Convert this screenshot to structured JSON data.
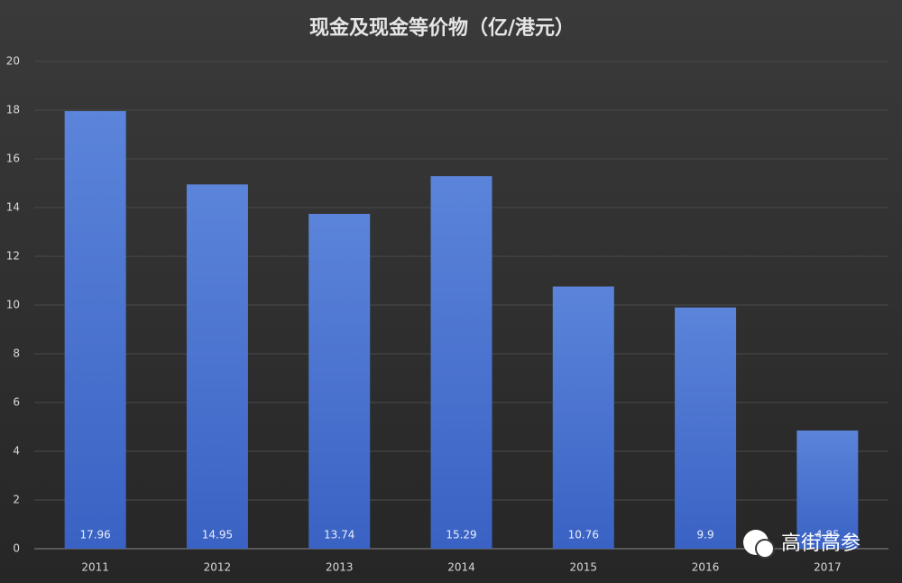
{
  "chart_data": {
    "type": "bar",
    "title": "现金及现金等价物（亿/港元）",
    "categories": [
      "2011",
      "2012",
      "2013",
      "2014",
      "2015",
      "2016",
      "2017"
    ],
    "values": [
      17.96,
      14.95,
      13.74,
      15.29,
      10.76,
      9.9,
      4.85
    ],
    "color": "#4a72d0",
    "ylim": [
      0,
      20
    ],
    "yticks": [
      0,
      2,
      4,
      6,
      8,
      10,
      12,
      14,
      16,
      18,
      20
    ],
    "grid": true
  },
  "watermark": "高街高参"
}
